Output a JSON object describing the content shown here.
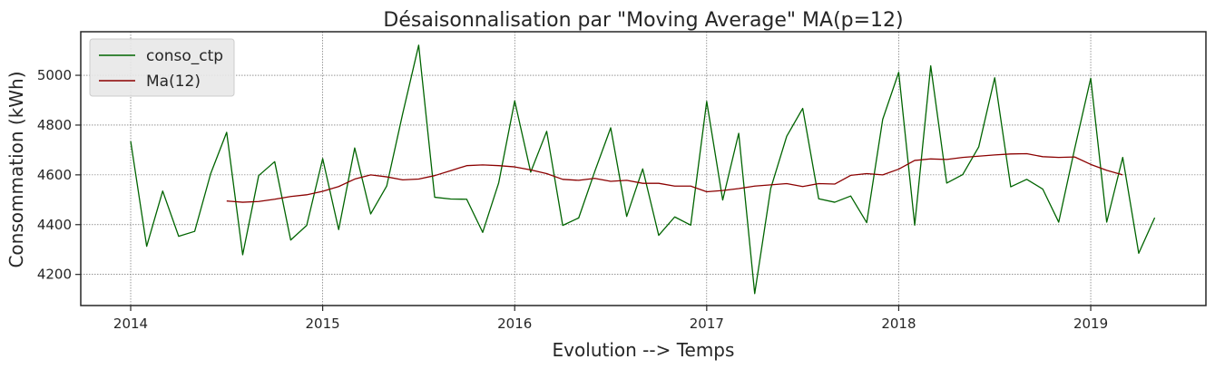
{
  "chart_data": {
    "type": "line",
    "title": "Désaisonnalisation par \"Moving Average\" MA(p=12)",
    "xlabel": "Evolution --> Temps",
    "ylabel": "Consommation (kWh)",
    "xlim": [
      2013.74,
      2019.6
    ],
    "ylim": [
      4075,
      5175
    ],
    "xticks": [
      2014,
      2015,
      2016,
      2017,
      2018,
      2019
    ],
    "xtick_labels": [
      "2014",
      "2015",
      "2016",
      "2017",
      "2018",
      "2019"
    ],
    "yticks": [
      4200,
      4400,
      4600,
      4800,
      5000
    ],
    "ytick_labels": [
      "4200",
      "4400",
      "4600",
      "4800",
      "5000"
    ],
    "grid": true,
    "legend_position": "top-left",
    "series": [
      {
        "name": "conso_ctp",
        "color": "#006400",
        "x_start": 2014.0,
        "x_step_months": 1,
        "values": [
          4735,
          4313,
          4535,
          4353,
          4373,
          4605,
          4771,
          4279,
          4597,
          4653,
          4338,
          4397,
          4665,
          4380,
          4708,
          4443,
          4555,
          4846,
          5121,
          4510,
          4503,
          4502,
          4369,
          4568,
          4897,
          4611,
          4775,
          4397,
          4427,
          4613,
          4789,
          4433,
          4624,
          4357,
          4431,
          4398,
          4895,
          4499,
          4767,
          4123,
          4545,
          4755,
          4867,
          4504,
          4490,
          4515,
          4408,
          4823,
          5012,
          4398,
          5038,
          4567,
          4601,
          4712,
          4990,
          4552,
          4582,
          4543,
          4410,
          4706,
          4988,
          4410,
          4670,
          4285,
          4428
        ]
      },
      {
        "name": "Ma(12)",
        "color": "#8b0000",
        "x_start": 2014.5,
        "x_step_months": 1,
        "values": [
          4495,
          4490,
          4493,
          4502,
          4513,
          4520,
          4534,
          4553,
          4583,
          4600,
          4592,
          4580,
          4583,
          4597,
          4617,
          4637,
          4640,
          4637,
          4632,
          4620,
          4605,
          4582,
          4578,
          4586,
          4574,
          4578,
          4566,
          4566,
          4555,
          4555,
          4532,
          4537,
          4545,
          4555,
          4560,
          4565,
          4553,
          4565,
          4563,
          4598,
          4605,
          4600,
          4623,
          4658,
          4664,
          4662,
          4670,
          4675,
          4680,
          4684,
          4685,
          4673,
          4670,
          4672,
          4642,
          4618,
          4600
        ]
      }
    ]
  }
}
